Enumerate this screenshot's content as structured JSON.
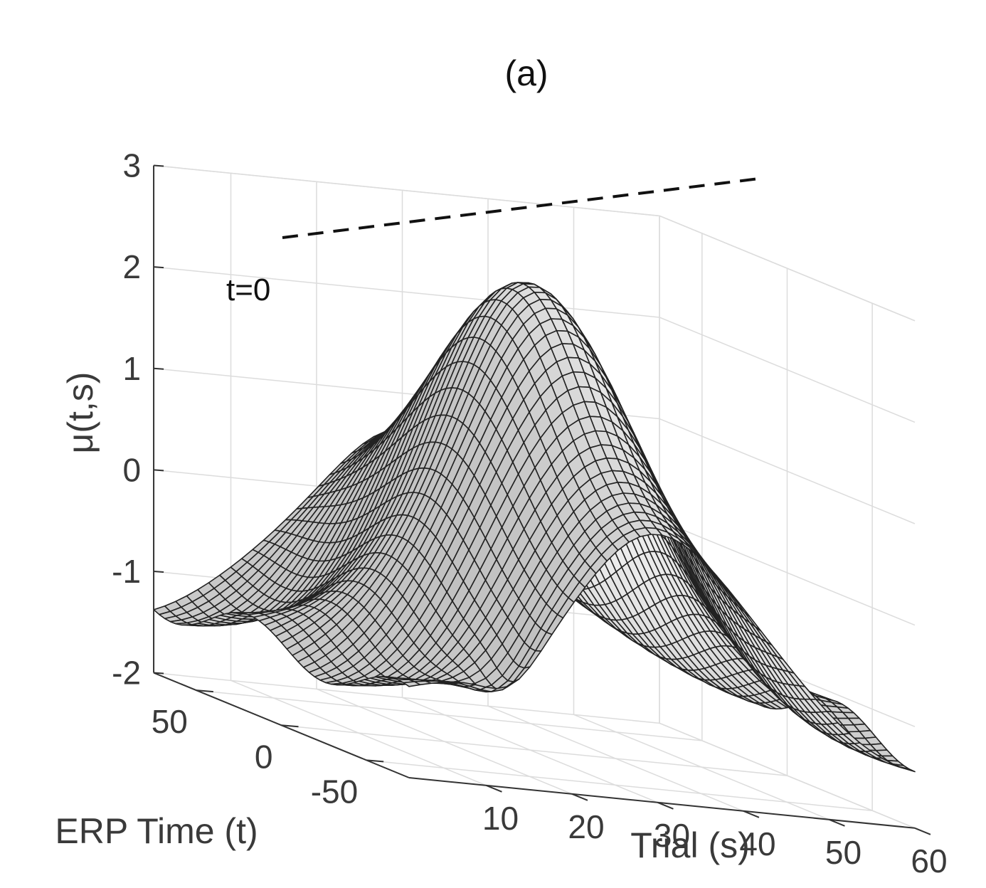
{
  "chart_data": {
    "type": "surface",
    "title": "(a)",
    "xlabel": "Trial (s)",
    "ylabel": "ERP Time (t)",
    "zlabel": "μ(t,s)",
    "xlim": [
      1,
      60
    ],
    "ylim": [
      -75,
      75
    ],
    "zlim": [
      -2,
      3
    ],
    "xticks": [
      "10",
      "20",
      "30",
      "40",
      "50",
      "60"
    ],
    "yticks": [
      "-50",
      "0",
      "50"
    ],
    "zticks": [
      "-2",
      "-1",
      "0",
      "1",
      "2",
      "3"
    ],
    "grid": true,
    "colormap": "gray",
    "annotation": {
      "text": "t=0",
      "line": "dashed",
      "at_t": 0
    },
    "surface_model": {
      "description": "Smooth ERP mean surface over trials s and ERP time t",
      "ridge_t_center": 0,
      "peak_trial": 30,
      "peak_value": 2.6,
      "baseline_value": -1.3
    }
  }
}
